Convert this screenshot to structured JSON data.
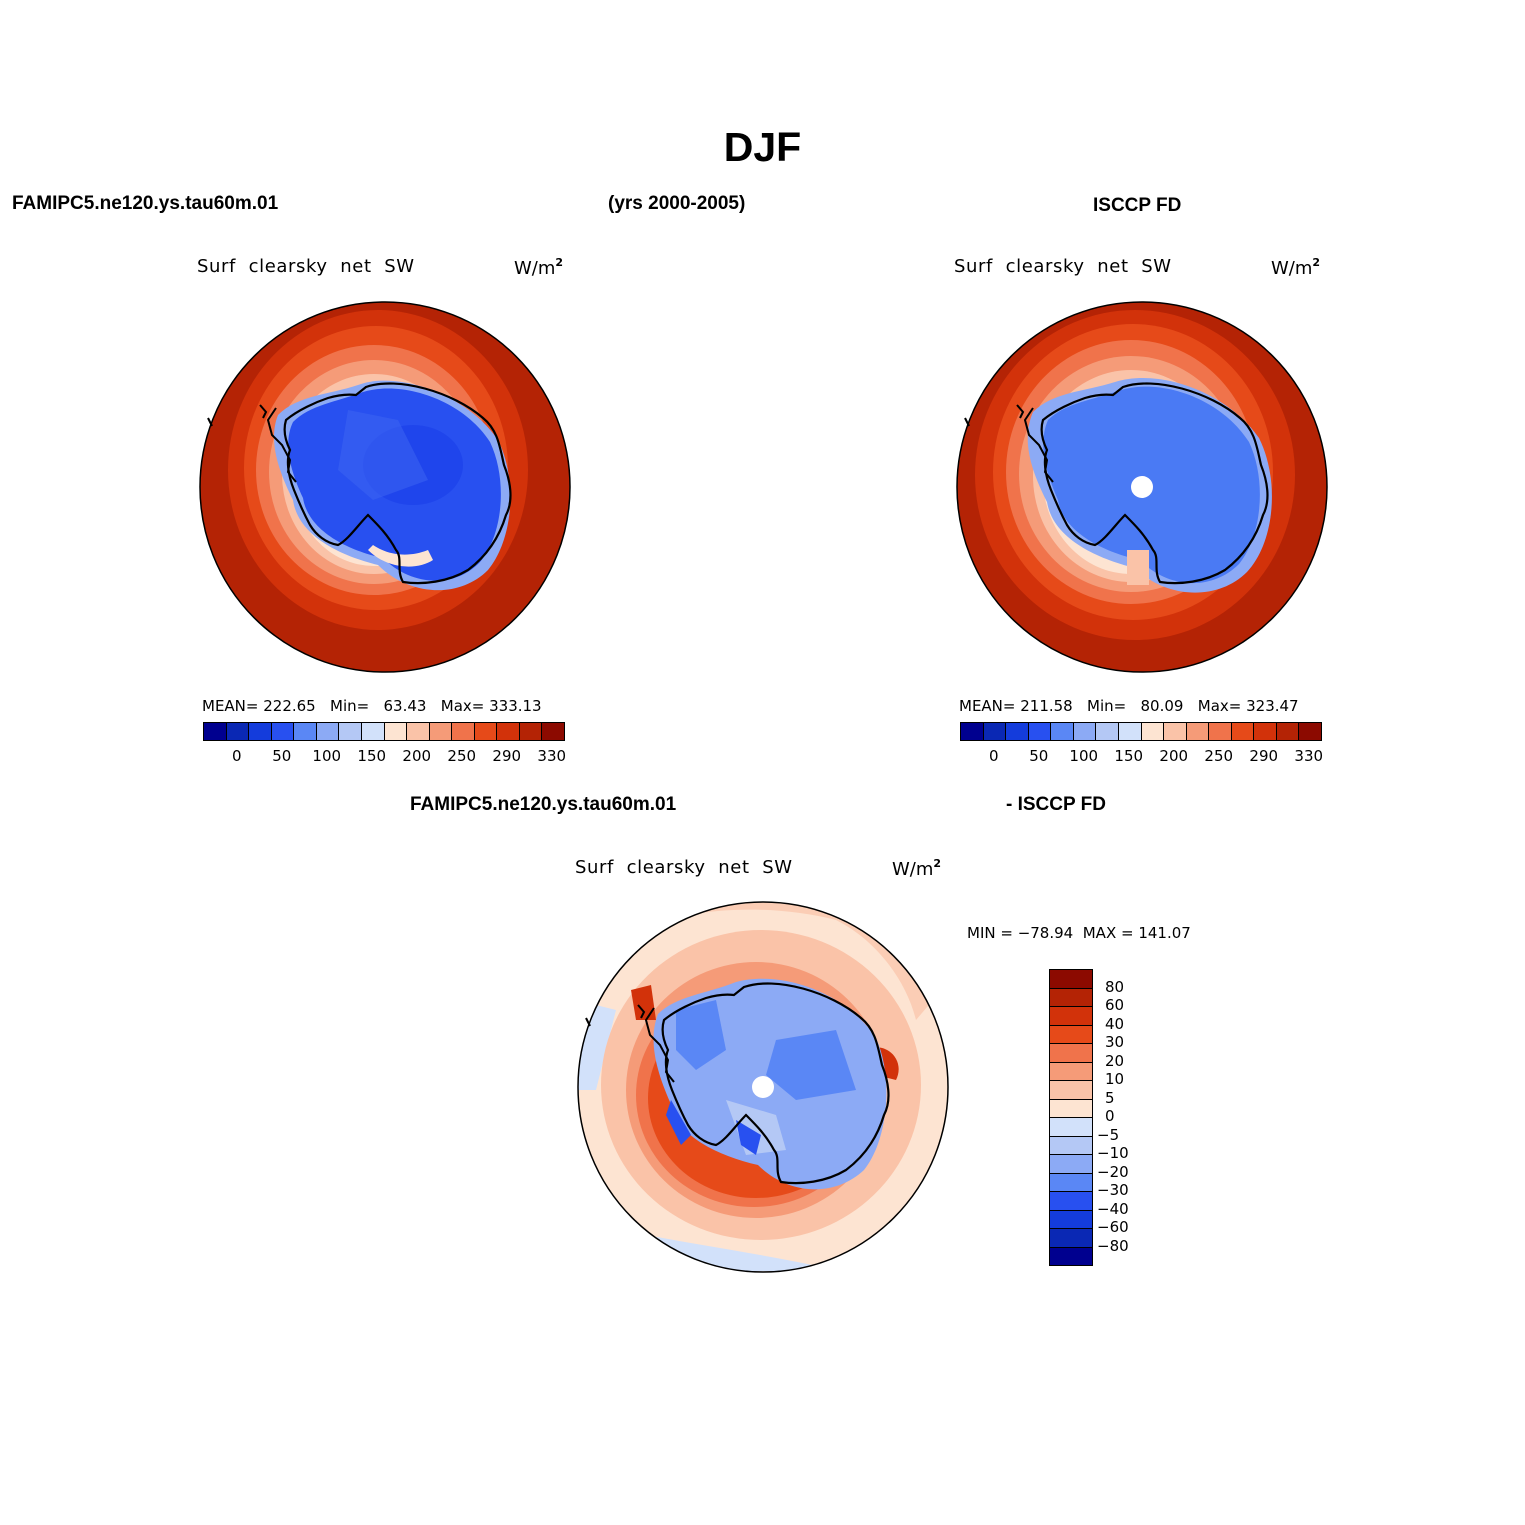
{
  "title": "DJF",
  "top_left_case": "FAMIPC5.ne120.ys.tau60m.01",
  "years": "(yrs 2000-2005)",
  "top_right_case": "ISCCP FD",
  "panel_variable": "Surf  clearsky  net  SW",
  "panel_units_base": "W/m",
  "panel_units_exp": "2",
  "panels": [
    {
      "name": "model",
      "stats": "MEAN= 222.65   Min=   63.43   Max= 333.13"
    },
    {
      "name": "obs",
      "stats": "MEAN= 211.58   Min=   80.09   Max= 323.47"
    }
  ],
  "diff_header_left": "FAMIPC5.ne120.ys.tau60m.01",
  "diff_header_right": "- ISCCP FD",
  "diff_stats": "MIN = −78.94  MAX = 141.07",
  "abs_colorbar": {
    "colors": [
      "#00008f",
      "#0a28b4",
      "#143cdc",
      "#2850f0",
      "#5a87f5",
      "#8caaf5",
      "#b4c8f5",
      "#d2e1fa",
      "#fde4d2",
      "#fac3a8",
      "#f59b78",
      "#f0734b",
      "#e64a19",
      "#d2320a",
      "#b42305",
      "#8c0a00"
    ],
    "labels": [
      "0",
      "50",
      "100",
      "150",
      "200",
      "250",
      "290",
      "330"
    ]
  },
  "diff_colorbar": {
    "colors": [
      "#8c0a00",
      "#b42305",
      "#d2320a",
      "#e64a19",
      "#f0734b",
      "#f59b78",
      "#fac3a8",
      "#fde4d2",
      "#d2e1fa",
      "#b4c8f5",
      "#8caaf5",
      "#5a87f5",
      "#2850f0",
      "#143cdc",
      "#0a28b4",
      "#00008f"
    ],
    "labels": [
      "80",
      "60",
      "40",
      "30",
      "20",
      "10",
      "5",
      "0",
      "−5",
      "−10",
      "−20",
      "−30",
      "−40",
      "−60",
      "−80"
    ]
  }
}
